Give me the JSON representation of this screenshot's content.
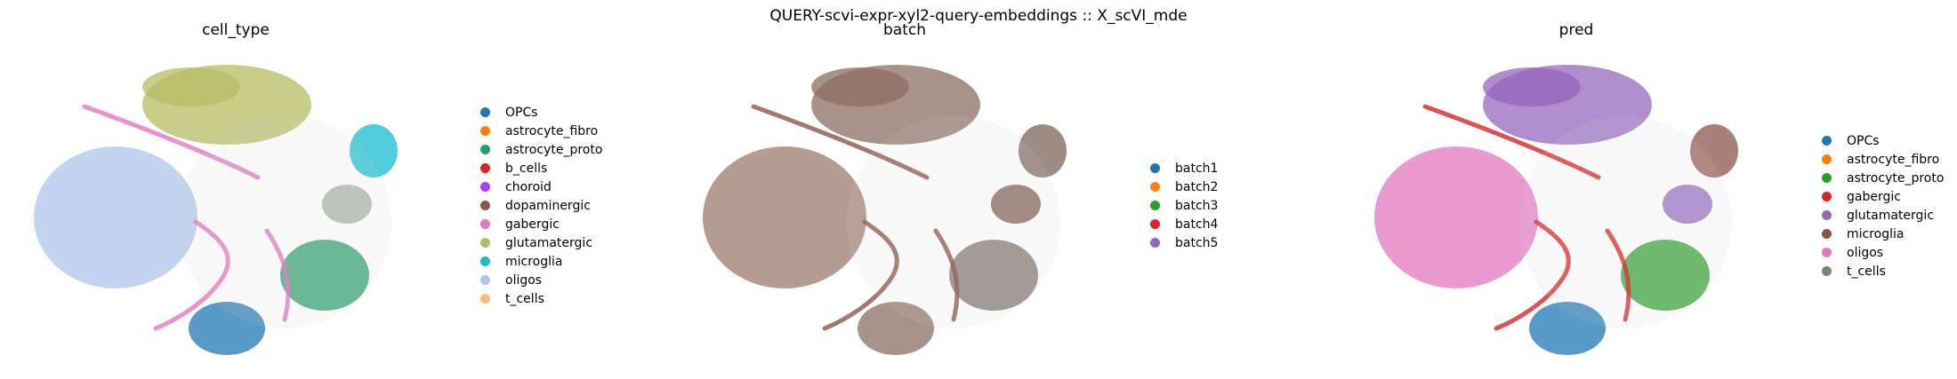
{
  "figure_title": "QUERY-scvi-expr-xyl2-query-embeddings :: X_scVI_mde",
  "chart_data": [
    {
      "type": "scatter",
      "title": "cell_type",
      "xlabel": "",
      "ylabel": "",
      "grid": false,
      "legend_position": "right",
      "series": [
        {
          "name": "OPCs",
          "color": "#1f77b4"
        },
        {
          "name": "astrocyte_fibro",
          "color": "#ff7f0e"
        },
        {
          "name": "astrocyte_proto",
          "color": "#279e68"
        },
        {
          "name": "b_cells",
          "color": "#d62728"
        },
        {
          "name": "choroid",
          "color": "#aa40fc"
        },
        {
          "name": "dopaminergic",
          "color": "#8c564b"
        },
        {
          "name": "gabergic",
          "color": "#e377c2"
        },
        {
          "name": "glutamatergic",
          "color": "#b5bd61"
        },
        {
          "name": "microglia",
          "color": "#17becf"
        },
        {
          "name": "oligos",
          "color": "#aec7e8"
        },
        {
          "name": "t_cells",
          "color": "#ffbb78"
        }
      ]
    },
    {
      "type": "scatter",
      "title": "batch",
      "xlabel": "",
      "ylabel": "",
      "grid": false,
      "legend_position": "right",
      "series": [
        {
          "name": "batch1",
          "color": "#1f77b4"
        },
        {
          "name": "batch2",
          "color": "#ff7f0e"
        },
        {
          "name": "batch3",
          "color": "#2ca02c"
        },
        {
          "name": "batch4",
          "color": "#d62728"
        },
        {
          "name": "batch5",
          "color": "#9467bd"
        }
      ]
    },
    {
      "type": "scatter",
      "title": "pred",
      "xlabel": "",
      "ylabel": "",
      "grid": false,
      "legend_position": "right",
      "series": [
        {
          "name": "OPCs",
          "color": "#1f77b4"
        },
        {
          "name": "astrocyte_fibro",
          "color": "#ff7f0e"
        },
        {
          "name": "astrocyte_proto",
          "color": "#2ca02c"
        },
        {
          "name": "gabergic",
          "color": "#d62728"
        },
        {
          "name": "glutamatergic",
          "color": "#9467bd"
        },
        {
          "name": "microglia",
          "color": "#8c564b"
        },
        {
          "name": "oligos",
          "color": "#e377c2"
        },
        {
          "name": "t_cells",
          "color": "#7f7f7f"
        }
      ]
    }
  ]
}
